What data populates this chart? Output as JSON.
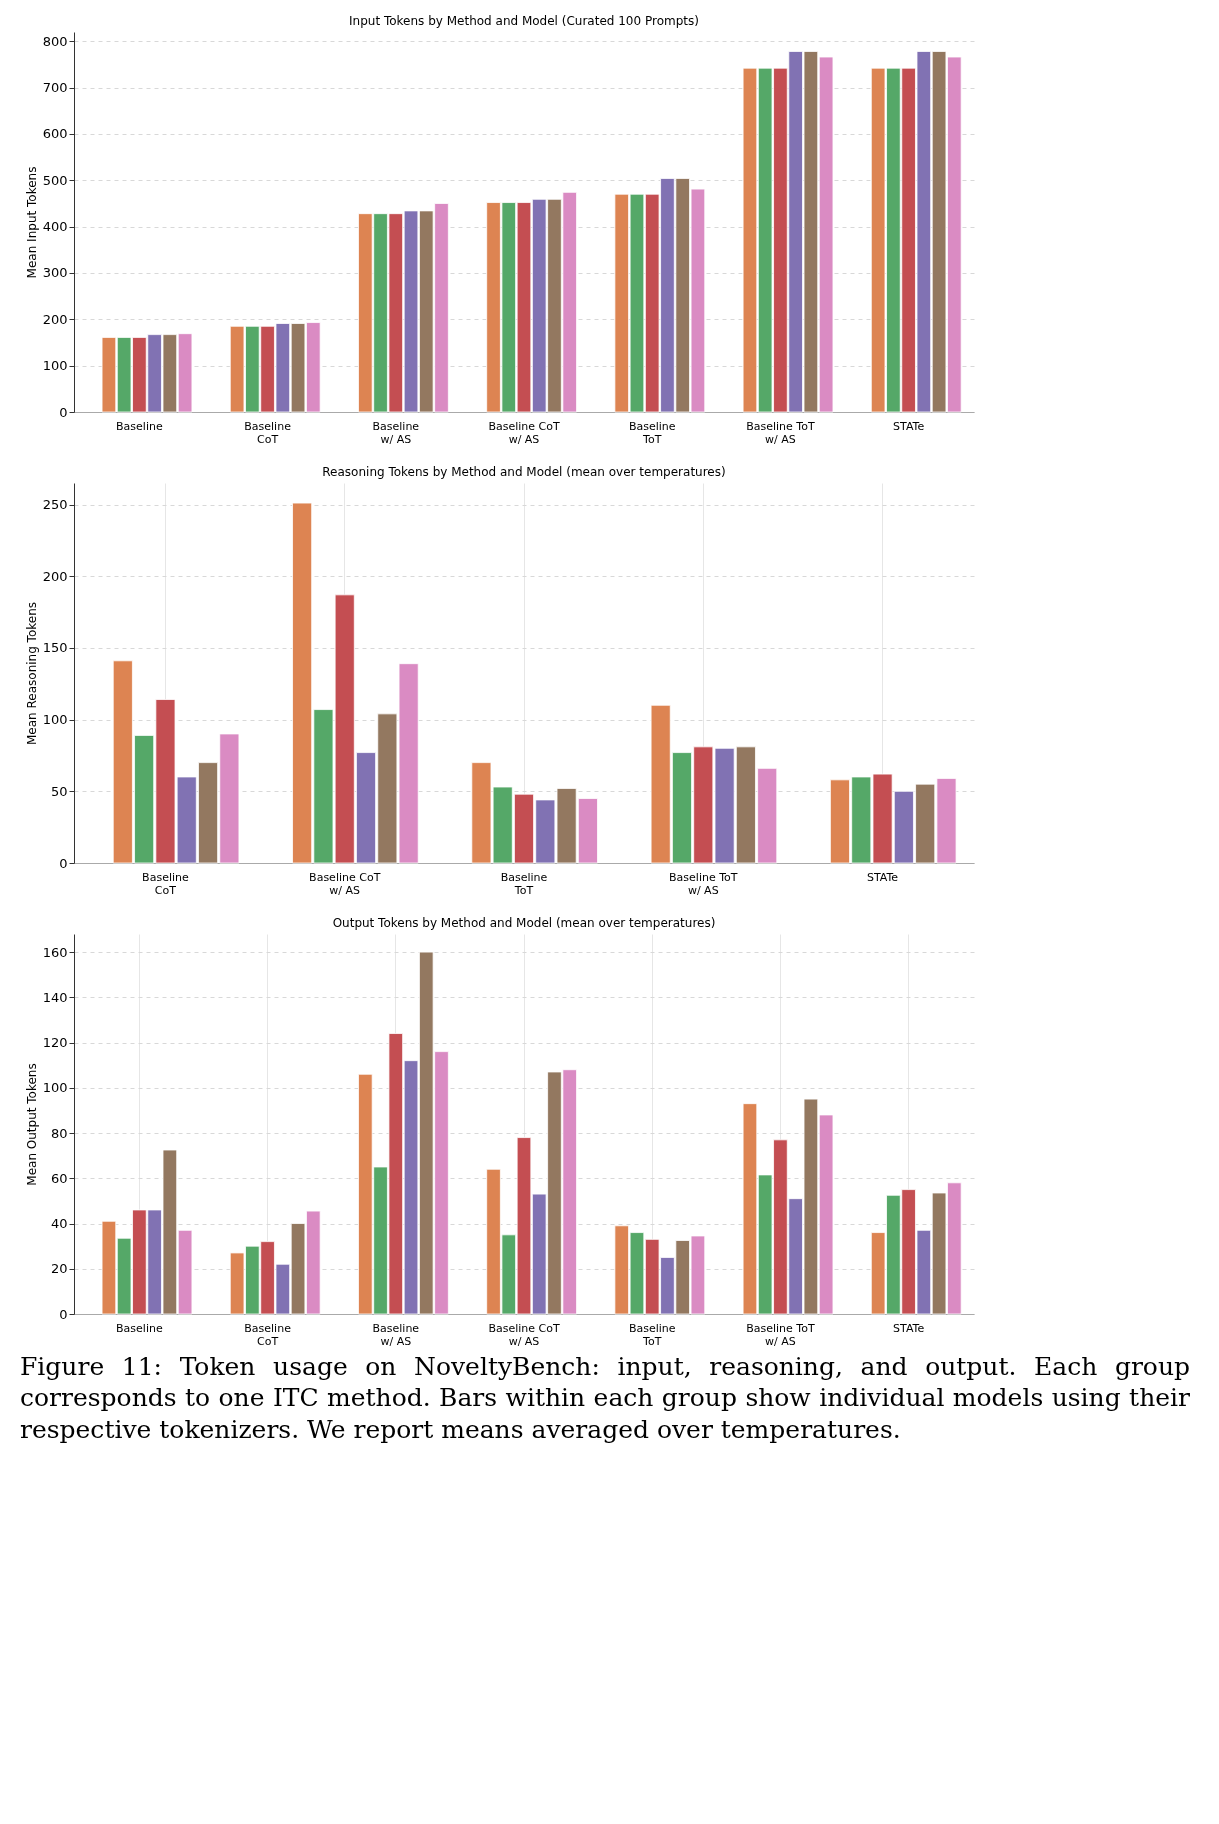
{
  "chart_data": [
    {
      "type": "bar",
      "title": "Input Tokens by Method and Model (Curated 100 Prompts)",
      "ylabel": "Mean Input Tokens",
      "categories": [
        "Baseline",
        "Baseline\nCoT",
        "Baseline\nw/ AS",
        "Baseline CoT\nw/ AS",
        "Baseline\nToT",
        "Baseline ToT\nw/ AS",
        "STATe"
      ],
      "ylim": [
        0,
        820
      ],
      "yticks": [
        0,
        100,
        200,
        300,
        400,
        500,
        600,
        700,
        800
      ],
      "grid": "y",
      "series": [
        {
          "color": "#4c72b0",
          "values": [
            null,
            null,
            null,
            null,
            null,
            null,
            null
          ]
        },
        {
          "color": "#dd8452",
          "values": [
            161,
            185,
            428,
            452,
            470,
            742,
            742
          ]
        },
        {
          "color": "#55a868",
          "values": [
            161,
            185,
            428,
            452,
            470,
            742,
            742
          ]
        },
        {
          "color": "#c44e52",
          "values": [
            161,
            185,
            428,
            452,
            470,
            742,
            742
          ]
        },
        {
          "color": "#8172b3",
          "values": [
            167,
            191,
            434,
            459,
            504,
            778,
            778
          ]
        },
        {
          "color": "#937860",
          "values": [
            167,
            191,
            434,
            459,
            504,
            778,
            778
          ]
        },
        {
          "color": "#da8bc3",
          "values": [
            169,
            193,
            450,
            474,
            481,
            766,
            766
          ]
        }
      ]
    },
    {
      "type": "bar",
      "title": "Reasoning Tokens by Method and Model (mean over temperatures)",
      "ylabel": "Mean Reasoning Tokens",
      "categories": [
        "Baseline\nCoT",
        "Baseline CoT\nw/ AS",
        "Baseline\nToT",
        "Baseline ToT\nw/ AS",
        "STATe"
      ],
      "ylim": [
        0,
        265
      ],
      "yticks": [
        0,
        50,
        100,
        150,
        200,
        250
      ],
      "grid": true,
      "series": [
        {
          "color": "#4c72b0",
          "values": [
            null,
            null,
            null,
            null,
            null
          ]
        },
        {
          "color": "#dd8452",
          "values": [
            141,
            251,
            70,
            110,
            58
          ]
        },
        {
          "color": "#55a868",
          "values": [
            89,
            107,
            53,
            77,
            60
          ]
        },
        {
          "color": "#c44e52",
          "values": [
            114,
            187,
            48,
            81,
            62
          ]
        },
        {
          "color": "#8172b3",
          "values": [
            60,
            77,
            44,
            80,
            50
          ]
        },
        {
          "color": "#937860",
          "values": [
            70,
            104,
            52,
            81,
            55
          ]
        },
        {
          "color": "#da8bc3",
          "values": [
            90,
            139,
            45,
            66,
            59
          ]
        }
      ]
    },
    {
      "type": "bar",
      "title": "Output Tokens by Method and Model (mean over temperatures)",
      "ylabel": "Mean Output Tokens",
      "categories": [
        "Baseline",
        "Baseline\nCoT",
        "Baseline\nw/ AS",
        "Baseline CoT\nw/ AS",
        "Baseline\nToT",
        "Baseline ToT\nw/ AS",
        "STATe"
      ],
      "ylim": [
        0,
        168
      ],
      "yticks": [
        0,
        20,
        40,
        60,
        80,
        100,
        120,
        140,
        160
      ],
      "grid": true,
      "annotations": [
        "Figure 11: Token usage on NoveltyBench: input, reasoning, and output. Each group corresponds to one ITC method. Bars within each group show individual models using their respective tokenizers. We report means averaged over temperatures."
      ],
      "series": [
        {
          "color": "#4c72b0",
          "values": [
            null,
            null,
            null,
            null,
            null,
            null,
            null
          ]
        },
        {
          "color": "#dd8452",
          "values": [
            41,
            27,
            106,
            64,
            39,
            93,
            36
          ]
        },
        {
          "color": "#55a868",
          "values": [
            33.5,
            30,
            65,
            35,
            36,
            61.5,
            52.5
          ]
        },
        {
          "color": "#c44e52",
          "values": [
            46,
            32,
            124,
            78,
            33,
            77,
            55
          ]
        },
        {
          "color": "#8172b3",
          "values": [
            46,
            22,
            112,
            53,
            25,
            51,
            37
          ]
        },
        {
          "color": "#937860",
          "values": [
            72.5,
            40,
            160,
            107,
            32.5,
            95,
            53.5
          ]
        },
        {
          "color": "#da8bc3",
          "values": [
            37,
            45.5,
            116,
            108,
            34.5,
            88,
            58
          ]
        }
      ]
    }
  ]
}
